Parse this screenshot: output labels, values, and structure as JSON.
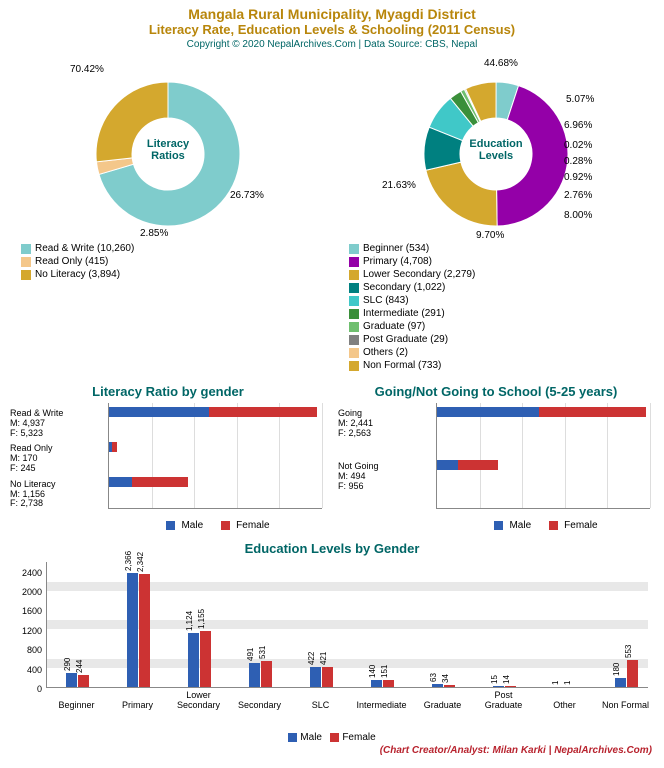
{
  "header": {
    "title": "Mangala Rural Municipality, Myagdi District",
    "subtitle": "Literacy Rate, Education Levels & Schooling (2011 Census)",
    "copyright": "Copyright © 2020 NepalArchives.Com | Data Source: CBS, Nepal",
    "title_color": "#b8860b",
    "copyright_color": "#006666"
  },
  "colors": {
    "male": "#2e5fb3",
    "female": "#cc3333",
    "teal": "#006666",
    "grid_alt": "#e8e8e8"
  },
  "donut1": {
    "center_label": "Literacy\nRatios",
    "slices": [
      {
        "label": "70.42%",
        "legend": "Read & Write (10,260)",
        "pct": 70.42,
        "color": "#7fcccc"
      },
      {
        "label": "2.85%",
        "legend": "Read Only (415)",
        "pct": 2.85,
        "color": "#f4c78a"
      },
      {
        "label": "26.73%",
        "legend": "No Literacy (3,894)",
        "pct": 26.73,
        "color": "#d4a82e"
      }
    ]
  },
  "donut2": {
    "center_label": "Education\nLevels",
    "slices": [
      {
        "label": "5.07%",
        "legend": "Beginner (534)",
        "pct": 5.07,
        "color": "#7fcccc"
      },
      {
        "label": "44.68%",
        "legend": "Primary (4,708)",
        "pct": 44.68,
        "color": "#9400a8"
      },
      {
        "label": "21.63%",
        "legend": "Lower Secondary (2,279)",
        "pct": 21.63,
        "color": "#d4a82e"
      },
      {
        "label": "9.70%",
        "legend": "Secondary (1,022)",
        "pct": 9.7,
        "color": "#008080"
      },
      {
        "label": "8.00%",
        "legend": "SLC (843)",
        "pct": 8.0,
        "color": "#40c8c8"
      },
      {
        "label": "2.76%",
        "legend": "Intermediate (291)",
        "pct": 2.76,
        "color": "#3a8f3a"
      },
      {
        "label": "0.92%",
        "legend": "Graduate (97)",
        "pct": 0.92,
        "color": "#6fbf6f"
      },
      {
        "label": "0.28%",
        "legend": "Post Graduate (29)",
        "pct": 0.28,
        "color": "#808080"
      },
      {
        "label": "0.02%",
        "legend": "Others (2)",
        "pct": 0.02,
        "color": "#f4c78a"
      },
      {
        "label": "6.96%",
        "legend": "Non Formal (733)",
        "pct": 6.96,
        "color": "#d4a82e"
      }
    ]
  },
  "hbar1": {
    "title": "Literacy Ratio by gender",
    "max": 10500,
    "rows": [
      {
        "label": "Read & Write\nM: 4,937\nF: 5,323",
        "m": 4937,
        "f": 5323
      },
      {
        "label": "Read Only\nM: 170\nF: 245",
        "m": 170,
        "f": 245
      },
      {
        "label": "No Literacy\nM: 1,156\nF: 2,738",
        "m": 1156,
        "f": 2738
      }
    ]
  },
  "hbar2": {
    "title": "Going/Not Going to School (5-25 years)",
    "max": 5100,
    "rows": [
      {
        "label": "Going\nM: 2,441\nF: 2,563",
        "m": 2441,
        "f": 2563
      },
      {
        "label": "Not Going\nM: 494\nF: 956",
        "m": 494,
        "f": 956
      }
    ]
  },
  "vbar": {
    "title": "Education Levels by Gender",
    "ymax": 2600,
    "yticks": [
      0,
      400,
      800,
      1200,
      1600,
      2000,
      2400
    ],
    "categories": [
      "Beginner",
      "Primary",
      "Lower Secondary",
      "Secondary",
      "SLC",
      "Intermediate",
      "Graduate",
      "Post Graduate",
      "Other",
      "Non Formal"
    ],
    "m": [
      290,
      2366,
      1124,
      491,
      422,
      140,
      63,
      15,
      1,
      180
    ],
    "m_labels": [
      "290",
      "2,366",
      "1,124",
      "491",
      "422",
      "140",
      "63",
      "15",
      "1",
      "180"
    ],
    "f": [
      244,
      2342,
      1155,
      531,
      421,
      151,
      34,
      14,
      1,
      553
    ],
    "f_labels": [
      "244",
      "2,342",
      "1,155",
      "531",
      "421",
      "151",
      "34",
      "14",
      "1",
      "553"
    ]
  },
  "legend_labels": {
    "male": "Male",
    "female": "Female"
  },
  "credit": "(Chart Creator/Analyst: Milan Karki | NepalArchives.Com)",
  "credit_color": "#b8232e"
}
